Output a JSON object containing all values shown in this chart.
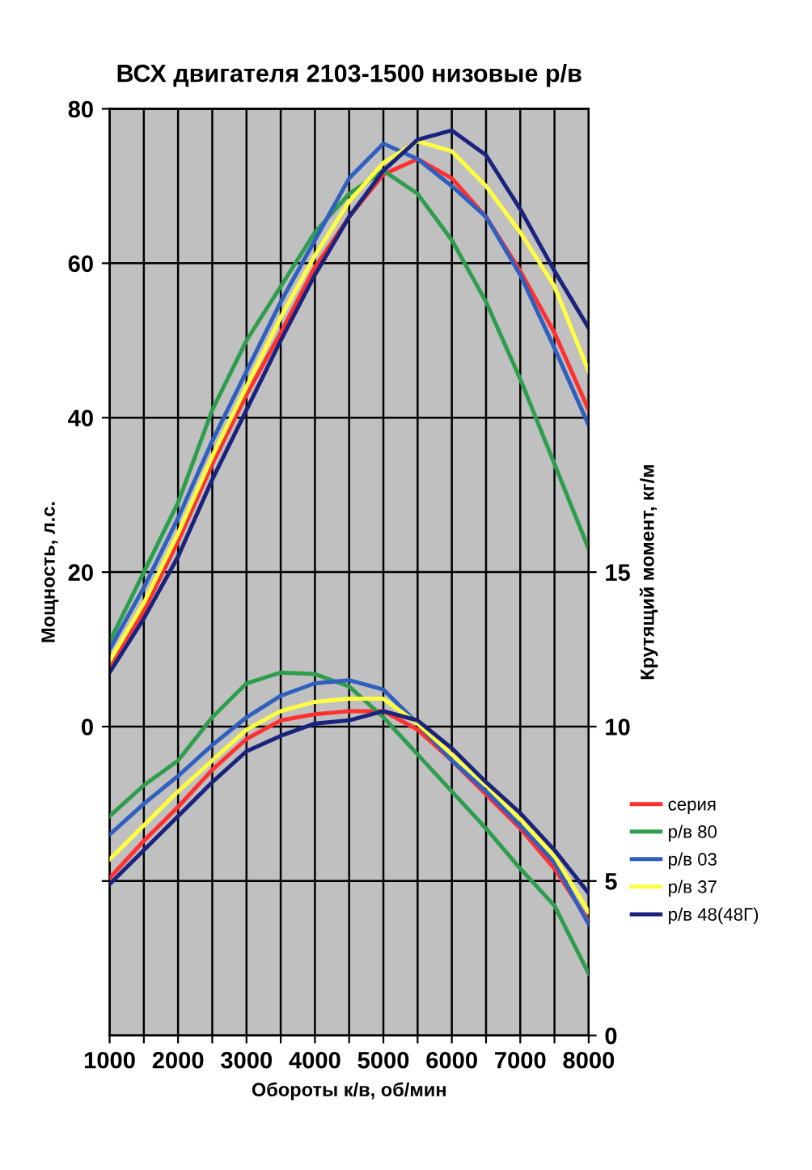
{
  "chart_data": {
    "type": "line",
    "title": "ВСХ двигателя 2103-1500 низовые р/в",
    "xlabel": "Обороты к/в, об/мин",
    "ylabel": "Мощность, л.с.",
    "y2label": "Крутящий момент, кг/м",
    "x": [
      1000,
      1500,
      2000,
      2500,
      3000,
      3500,
      4000,
      4500,
      5000,
      5500,
      6000,
      6500,
      7000,
      7500,
      8000
    ],
    "xlim": [
      1000,
      8000
    ],
    "xticks": [
      1000,
      {
        "value": 1500,
        "label": null
      },
      2000,
      {
        "value": 2500,
        "label": null
      },
      3000,
      {
        "value": 3500,
        "label": null
      },
      4000,
      {
        "value": 4500,
        "label": null
      },
      5000,
      {
        "value": 5500,
        "label": null
      },
      6000,
      {
        "value": 6500,
        "label": null
      },
      7000,
      {
        "value": 7500,
        "label": null
      },
      8000
    ],
    "ylim": [
      -40,
      80
    ],
    "yticks": [
      {
        "value": -20,
        "label": null
      },
      0,
      20,
      40,
      60,
      80
    ],
    "y2lim": [
      0,
      30
    ],
    "y2ticks": [
      0,
      5,
      10,
      15
    ],
    "grid": true,
    "legend": "right",
    "marker": "none",
    "line_style": "solid",
    "series": [
      {
        "name": "серия",
        "color": "#ff3030",
        "values": [
          8,
          15,
          24,
          34,
          43,
          51,
          59.5,
          66,
          71.5,
          73.5,
          71,
          66,
          59,
          51,
          41
        ]
      },
      {
        "name": "р/в 80",
        "color": "#2e9e4e",
        "values": [
          11,
          20,
          29,
          41,
          50,
          57,
          64,
          69,
          72,
          69,
          63,
          55,
          45,
          34,
          23
        ]
      },
      {
        "name": "р/в 03",
        "color": "#2f5fbf",
        "values": [
          10,
          18,
          27,
          37,
          46,
          55,
          63,
          71,
          75.5,
          73.5,
          70,
          66,
          58.5,
          49,
          39
        ]
      },
      {
        "name": "р/в 37",
        "color": "#ffff40",
        "values": [
          8.5,
          16,
          25,
          35,
          44,
          53,
          61,
          68,
          73,
          75.8,
          74.5,
          70,
          64,
          57,
          46
        ]
      },
      {
        "name": "р/в 48(48Г)",
        "color": "#1a237e",
        "values": [
          7,
          14,
          22,
          32,
          41,
          50,
          58.5,
          66,
          72,
          76,
          77.2,
          74,
          67,
          59,
          51.6
        ]
      },
      {
        "axis": "y2",
        "color": "#ff3030",
        "values": [
          5.1,
          6.3,
          7.4,
          8.6,
          9.6,
          10.2,
          10.4,
          10.5,
          10.5,
          9.9,
          8.9,
          7.8,
          6.7,
          5.4,
          3.7
        ]
      },
      {
        "axis": "y2",
        "color": "#2e9e4e",
        "values": [
          7.1,
          8.1,
          8.9,
          10.3,
          11.4,
          11.75,
          11.7,
          11.3,
          10.3,
          9.1,
          7.9,
          6.7,
          5.4,
          4.2,
          2.0
        ]
      },
      {
        "axis": "y2",
        "color": "#2f5fbf",
        "values": [
          6.5,
          7.5,
          8.4,
          9.4,
          10.3,
          11.0,
          11.4,
          11.5,
          11.2,
          10.1,
          8.9,
          7.9,
          6.8,
          5.6,
          3.6
        ]
      },
      {
        "axis": "y2",
        "color": "#ffff40",
        "values": [
          5.7,
          6.8,
          7.9,
          8.9,
          9.9,
          10.5,
          10.8,
          10.9,
          10.9,
          10.1,
          9.1,
          8.1,
          7.0,
          5.8,
          4.0
        ]
      },
      {
        "axis": "y2",
        "color": "#1a237e",
        "values": [
          4.9,
          6.0,
          7.1,
          8.2,
          9.2,
          9.7,
          10.1,
          10.2,
          10.5,
          10.2,
          9.3,
          8.2,
          7.2,
          6.0,
          4.6
        ]
      }
    ]
  }
}
